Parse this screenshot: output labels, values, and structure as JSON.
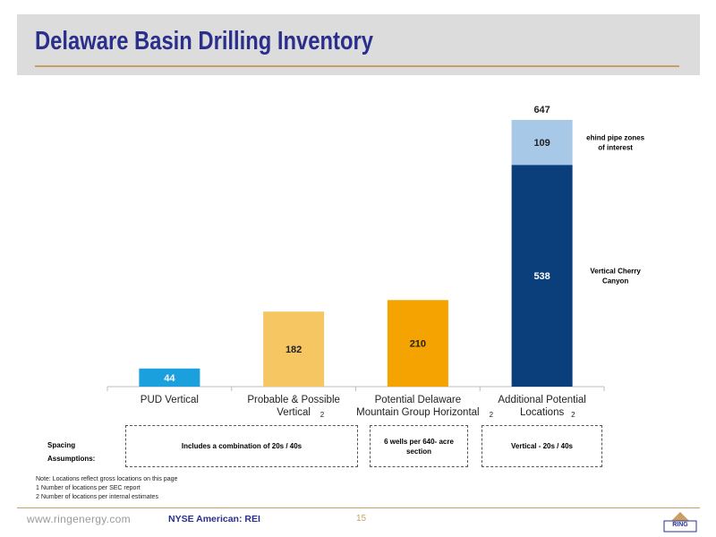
{
  "title": "Delaware Basin Drilling Inventory",
  "chart_data": {
    "type": "bar",
    "stacked": true,
    "categories": [
      {
        "main": "PUD Vertical",
        "line2": "",
        "sup": ""
      },
      {
        "main": "Probable & Possible",
        "line2": "Vertical",
        "sup": "2"
      },
      {
        "main": "Potential Delaware",
        "line2": "Mountain Group Horizontal",
        "sup": "2"
      },
      {
        "main": "Additional Potential",
        "line2": "Locations",
        "sup": "2"
      }
    ],
    "series": [
      {
        "values": [
          44,
          182,
          210,
          538
        ],
        "colors": [
          "#1aa0dc",
          "#f5c661",
          "#f5a300",
          "#0b3f7c"
        ],
        "label_colors": [
          "#ffffff",
          "#222222",
          "#222222",
          "#ffffff"
        ]
      },
      {
        "values": [
          0,
          0,
          0,
          109
        ],
        "colors": [
          "#a8c8e8",
          "#a8c8e8",
          "#a8c8e8",
          "#a8c8e8"
        ],
        "label_colors": [
          "#222222",
          "#222222",
          "#222222",
          "#222222"
        ]
      }
    ],
    "totals": [
      {
        "category_index": 3,
        "value": 647
      }
    ],
    "side_labels": [
      {
        "lines": [
          "ehind pipe zones",
          "of interest"
        ],
        "series_index": 1
      },
      {
        "lines": [
          "Vertical Cherry",
          "Canyon"
        ],
        "series_index": 0
      }
    ],
    "ylim": [
      0,
      700
    ],
    "grid": false
  },
  "spacing": {
    "label": "Spacing Assumptions:",
    "boxes": [
      {
        "text": "Includes a combination of 20s / 40s"
      },
      {
        "text": "6 wells per 640- acre section"
      },
      {
        "text": "Vertical - 20s / 40s"
      }
    ]
  },
  "notes": [
    "Note: Locations reflect gross locations on this page",
    "1 Number of locations per SEC report",
    "2 Number of locations per internal estimates"
  ],
  "footer": {
    "url": "www.ringenergy.com",
    "ticker": "NYSE American: REI",
    "page": "15",
    "logo_text": "RING"
  }
}
